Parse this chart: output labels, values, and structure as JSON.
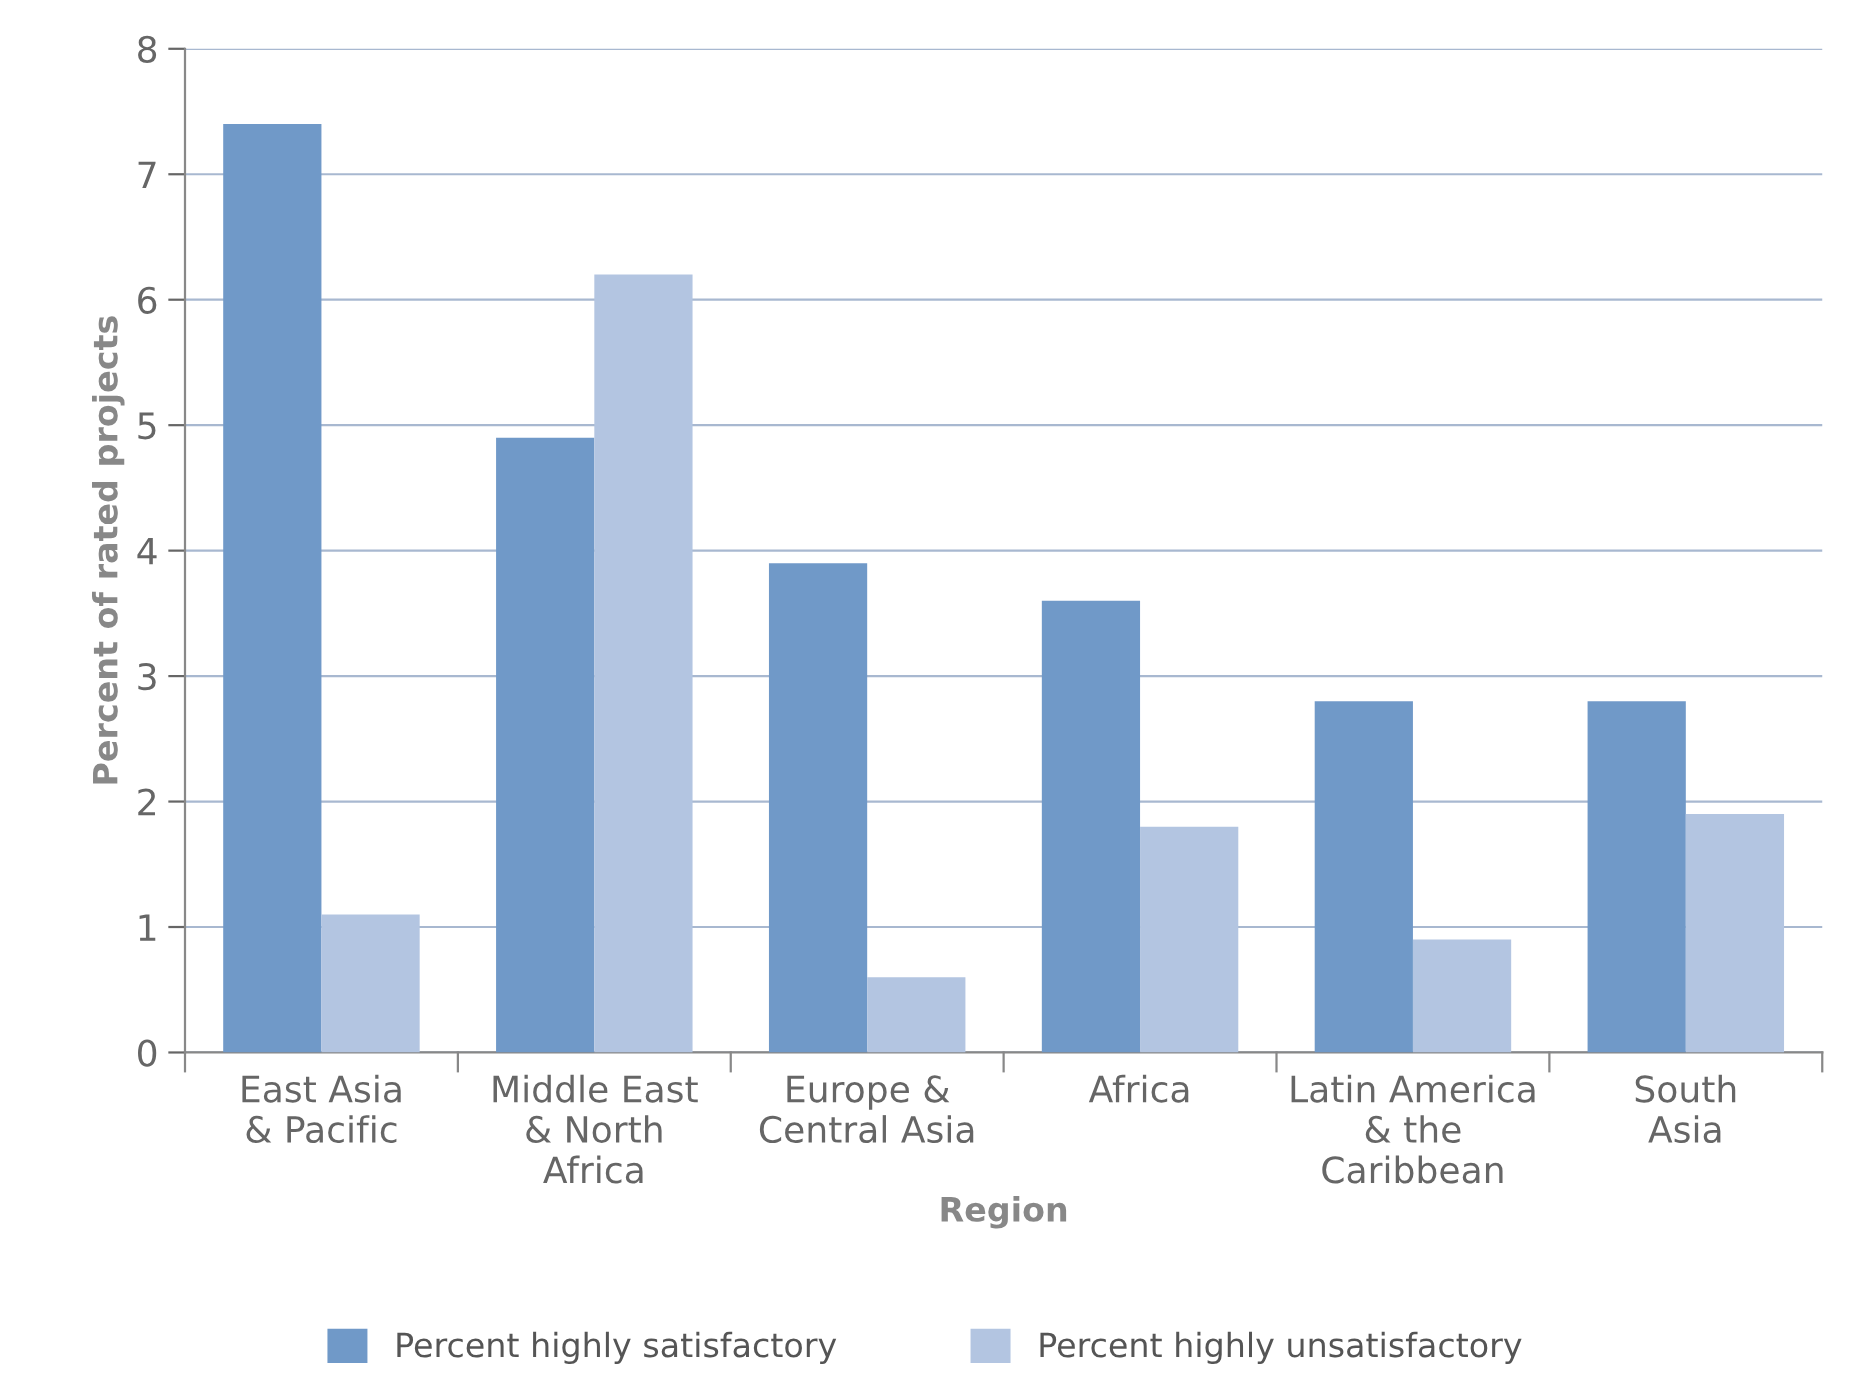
{
  "chart_data": {
    "type": "bar",
    "xlabel": "Region",
    "ylabel": "Percent of rated projects",
    "categories": [
      "East Asia\n& Pacific",
      "Middle East\n& North\nAfrica",
      "Europe &\nCentral Asia",
      "Africa",
      "Latin America\n& the\nCaribbean",
      "South\nAsia"
    ],
    "series": [
      {
        "name": "Percent highly satisfactory",
        "color": "#7099c8",
        "values": [
          7.4,
          4.9,
          3.9,
          3.6,
          2.8,
          2.8
        ]
      },
      {
        "name": "Percent highly unsatisfactory",
        "color": "#b3c5e1",
        "values": [
          1.1,
          6.2,
          0.6,
          1.8,
          0.9,
          1.9
        ]
      }
    ],
    "ylim": [
      0,
      8
    ],
    "yticks": [
      0,
      1,
      2,
      3,
      4,
      5,
      6,
      7,
      8
    ],
    "grid": "y",
    "legend": "bottom"
  }
}
